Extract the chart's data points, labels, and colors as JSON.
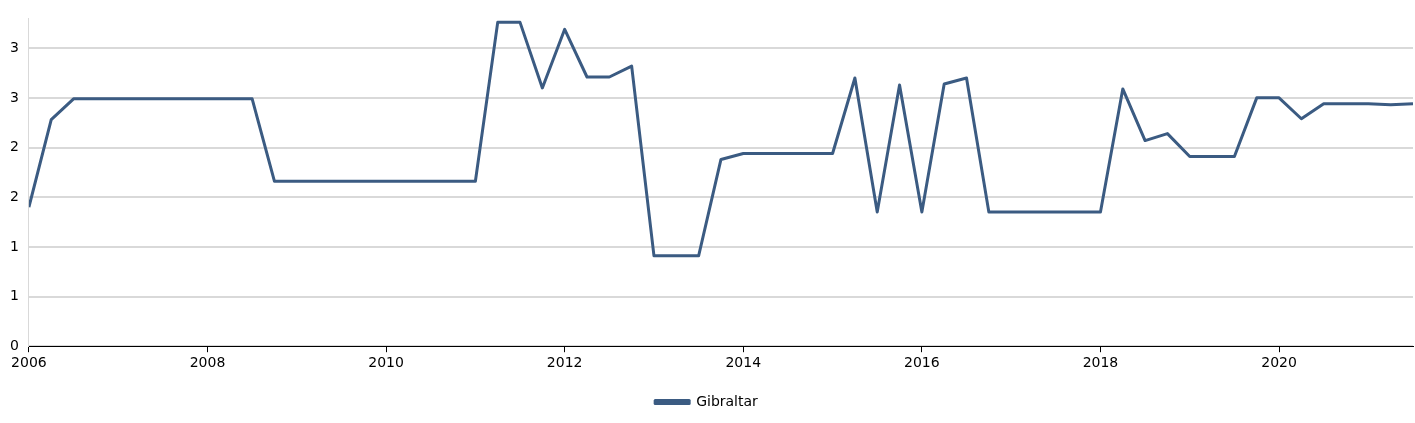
{
  "chart_data": {
    "type": "line",
    "legend": "bottom",
    "grid": "y",
    "marker": "none",
    "line_style": "solid",
    "x": [
      2006,
      2006.25,
      2006.5,
      2006.75,
      2007,
      2007.25,
      2007.5,
      2007.75,
      2008,
      2008.25,
      2008.5,
      2008.75,
      2009,
      2009.25,
      2009.5,
      2009.75,
      2010,
      2010.25,
      2010.5,
      2010.75,
      2011,
      2011.25,
      2011.5,
      2011.75,
      2012,
      2012.25,
      2012.5,
      2012.75,
      2013,
      2013.25,
      2013.5,
      2013.75,
      2014,
      2014.25,
      2014.5,
      2014.75,
      2015,
      2015.25,
      2015.5,
      2015.75,
      2016,
      2016.25,
      2016.5,
      2016.75,
      2017,
      2017.25,
      2017.5,
      2017.75,
      2018,
      2018.25,
      2018.5,
      2018.75,
      2019,
      2019.25,
      2019.5,
      2019.75,
      2020,
      2020.25,
      2020.5,
      2020.75,
      2021,
      2021.25,
      2021.5
    ],
    "series": [
      {
        "name": "Gibraltar",
        "color": "#3b5b82",
        "values": [
          1.4,
          2.28,
          2.49,
          2.49,
          2.49,
          2.49,
          2.49,
          2.49,
          2.49,
          2.49,
          2.49,
          1.66,
          1.66,
          1.66,
          1.66,
          1.66,
          1.66,
          1.66,
          1.66,
          1.66,
          1.66,
          3.26,
          3.26,
          2.6,
          3.19,
          2.71,
          2.71,
          2.82,
          0.91,
          0.91,
          0.91,
          1.88,
          1.94,
          1.94,
          1.94,
          1.94,
          1.94,
          2.7,
          1.35,
          2.63,
          1.35,
          2.64,
          2.7,
          1.35,
          1.35,
          1.35,
          1.35,
          1.35,
          1.35,
          2.59,
          2.07,
          2.14,
          1.91,
          1.91,
          1.91,
          2.5,
          2.5,
          2.29,
          2.44,
          2.44,
          2.44,
          2.43,
          2.44
        ]
      }
    ],
    "xlim": [
      2006,
      2021.5
    ],
    "xticks": [
      2006,
      2008,
      2010,
      2012,
      2014,
      2016,
      2018,
      2020
    ],
    "ylim": [
      0,
      3.3
    ],
    "yticks": [
      0,
      {
        "value": 0.5,
        "label": "1"
      },
      {
        "value": 1,
        "label": "1"
      },
      {
        "value": 1.5,
        "label": "2"
      },
      {
        "value": 2,
        "label": "2"
      },
      {
        "value": 2.5,
        "label": "3"
      },
      {
        "value": 3,
        "label": "3"
      }
    ]
  }
}
